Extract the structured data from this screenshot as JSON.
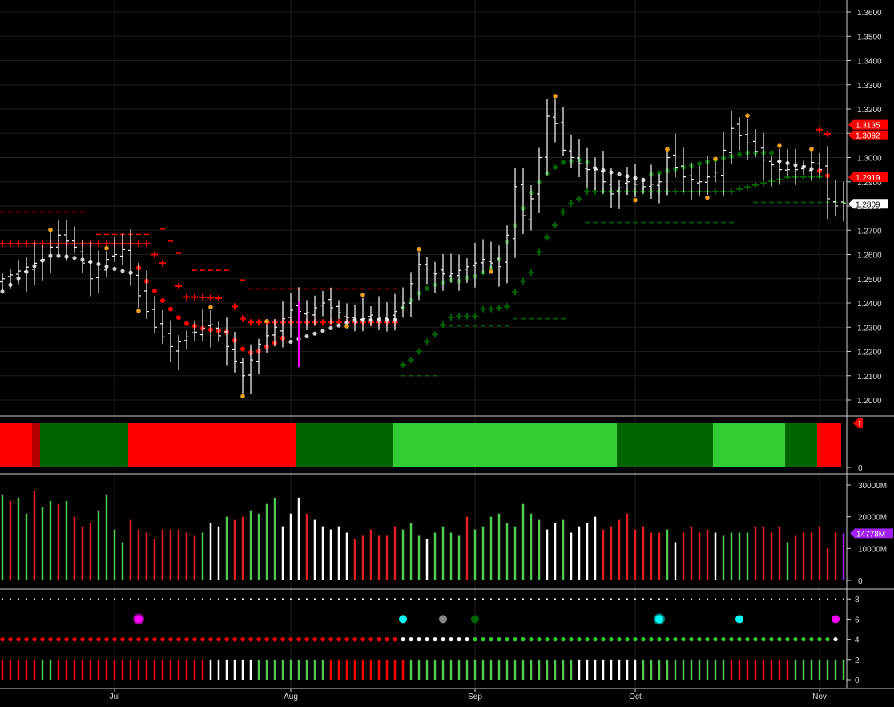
{
  "colors": {
    "background": "#000000",
    "bar": "#ffffff",
    "bull_dark": "#006400",
    "bull_light": "#32cd32",
    "bear": "#ff0000",
    "bear_dark": "#b30000",
    "volume_green": "#4fc94f",
    "volume_red": "#e02020",
    "volume_last": "#a020f0",
    "marker_orange": "#f0a020",
    "marker_cyan": "#00ffff",
    "marker_magenta": "#ff00ff",
    "marker_gray": "#888888"
  },
  "chart_data": [
    {
      "type": "ohlc",
      "panel": "price",
      "ylim": [
        1.195,
        1.3615
      ],
      "y_ticks": [
        "1.3600",
        "1.3500",
        "1.3400",
        "1.3300",
        "1.3200",
        "1.3100",
        "1.3000",
        "1.2900",
        "1.2800",
        "1.2700",
        "1.2600",
        "1.2500",
        "1.2400",
        "1.2300",
        "1.2200",
        "1.2100",
        "1.2000"
      ],
      "x_ticks": [
        "Jul",
        "Aug",
        "Sep",
        "Oct",
        "Nov"
      ],
      "x_tick_index": [
        14,
        36,
        59,
        79,
        102
      ],
      "anchors": {
        "close": [
          [
            0,
            1.25
          ],
          [
            5,
            1.258
          ],
          [
            7,
            1.268
          ],
          [
            9,
            1.263
          ],
          [
            11,
            1.25
          ],
          [
            13,
            1.258
          ],
          [
            15,
            1.262
          ],
          [
            17,
            1.243
          ],
          [
            19,
            1.23
          ],
          [
            21,
            1.222
          ],
          [
            24,
            1.228
          ],
          [
            26,
            1.231
          ],
          [
            28,
            1.222
          ],
          [
            30,
            1.21
          ],
          [
            32,
            1.223
          ],
          [
            34,
            1.23
          ],
          [
            36,
            1.237
          ],
          [
            38,
            1.236
          ],
          [
            40,
            1.24
          ],
          [
            42,
            1.236
          ],
          [
            44,
            1.232
          ],
          [
            46,
            1.235
          ],
          [
            48,
            1.233
          ],
          [
            50,
            1.24
          ],
          [
            52,
            1.256
          ],
          [
            54,
            1.252
          ],
          [
            56,
            1.252
          ],
          [
            58,
            1.255
          ],
          [
            60,
            1.258
          ],
          [
            62,
            1.255
          ],
          [
            63,
            1.268
          ],
          [
            64,
            1.288
          ],
          [
            65,
            1.276
          ],
          [
            66,
            1.283
          ],
          [
            67,
            1.3
          ],
          [
            68,
            1.317
          ],
          [
            69,
            1.314
          ],
          [
            70,
            1.303
          ],
          [
            71,
            1.3
          ],
          [
            73,
            1.295
          ],
          [
            74,
            1.295
          ],
          [
            76,
            1.285
          ],
          [
            78,
            1.29
          ],
          [
            80,
            1.288
          ],
          [
            82,
            1.29
          ],
          [
            83,
            1.3
          ],
          [
            85,
            1.292
          ],
          [
            87,
            1.29
          ],
          [
            89,
            1.294
          ],
          [
            90,
            1.303
          ],
          [
            91,
            1.312
          ],
          [
            93,
            1.306
          ],
          [
            95,
            1.299
          ],
          [
            97,
            1.295
          ],
          [
            99,
            1.295
          ],
          [
            101,
            1.298
          ],
          [
            102,
            1.295
          ],
          [
            103,
            1.283
          ],
          [
            104,
            1.28
          ],
          [
            105,
            1.281
          ]
        ]
      },
      "tags": [
        "1.3135",
        "1.3092",
        "1.2919",
        "1.2809"
      ],
      "tag_values": [
        1.3135,
        1.3092,
        1.2919,
        1.2809
      ]
    },
    {
      "type": "heatmap",
      "panel": "trend_band",
      "segments": [
        {
          "start": 0,
          "end": 4,
          "color": "bear"
        },
        {
          "start": 4,
          "end": 5,
          "color": "bear_dark"
        },
        {
          "start": 5,
          "end": 16,
          "color": "bull_dark"
        },
        {
          "start": 16,
          "end": 37,
          "color": "bear"
        },
        {
          "start": 37,
          "end": 49,
          "color": "bull_dark"
        },
        {
          "start": 49,
          "end": 77,
          "color": "bull_light"
        },
        {
          "start": 77,
          "end": 89,
          "color": "bull_dark"
        },
        {
          "start": 89,
          "end": 98,
          "color": "bull_light"
        },
        {
          "start": 98,
          "end": 102,
          "color": "bull_dark"
        },
        {
          "start": 102,
          "end": 104,
          "color": "bear"
        }
      ],
      "y_ticks": [
        "0"
      ],
      "tag": "1"
    },
    {
      "type": "bar",
      "panel": "volume",
      "ylim": [
        0,
        32000
      ],
      "y_ticks": [
        "30000M",
        "20000M",
        "10000M",
        "0"
      ],
      "last_value_label": "14778M",
      "values": [
        27000,
        25000,
        26000,
        21000,
        28000,
        23000,
        25000,
        24000,
        25000,
        20000,
        17000,
        18000,
        22000,
        27000,
        16000,
        12000,
        19000,
        16000,
        15000,
        13000,
        16000,
        16000,
        16000,
        15000,
        14000,
        15000,
        18000,
        17000,
        20000,
        19000,
        20000,
        22000,
        21000,
        24000,
        26000,
        17000,
        21000,
        26000,
        21000,
        19000,
        17000,
        16000,
        17000,
        15000,
        13000,
        14000,
        16000,
        14000,
        14000,
        17000,
        16000,
        18000,
        14000,
        13000,
        15000,
        17000,
        15000,
        14000,
        20000,
        16000,
        17000,
        20000,
        21000,
        18000,
        17000,
        24000,
        21000,
        19000,
        16000,
        18000,
        19000,
        15000,
        17000,
        18000,
        20000,
        16000,
        17000,
        19000,
        21000,
        16000,
        17000,
        15000,
        15000,
        16000,
        12000,
        15000,
        17000,
        15000,
        16000,
        15000,
        14000,
        15000,
        15000,
        15000,
        17000,
        17000,
        15000,
        17000,
        12000,
        14000,
        15000,
        15000,
        17000,
        10000,
        15000,
        14778
      ],
      "colors": [
        "g",
        "r",
        "g",
        "g",
        "r",
        "g",
        "g",
        "r",
        "g",
        "r",
        "r",
        "r",
        "g",
        "g",
        "g",
        "g",
        "r",
        "r",
        "r",
        "r",
        "r",
        "r",
        "r",
        "r",
        "r",
        "g",
        "w",
        "w",
        "g",
        "r",
        "r",
        "g",
        "g",
        "g",
        "g",
        "w",
        "w",
        "w",
        "r",
        "w",
        "w",
        "w",
        "w",
        "w",
        "r",
        "r",
        "r",
        "r",
        "r",
        "r",
        "g",
        "g",
        "g",
        "w",
        "g",
        "g",
        "g",
        "g",
        "r",
        "g",
        "g",
        "g",
        "g",
        "g",
        "g",
        "g",
        "g",
        "g",
        "w",
        "w",
        "g",
        "w",
        "w",
        "w",
        "w",
        "r",
        "r",
        "r",
        "r",
        "r",
        "r",
        "r",
        "r",
        "g",
        "w",
        "r",
        "r",
        "r",
        "r",
        "w",
        "g",
        "g",
        "g",
        "g",
        "r",
        "r",
        "r",
        "r",
        "g",
        "r",
        "r",
        "r",
        "r",
        "r",
        "r",
        "v"
      ]
    },
    {
      "type": "scatter",
      "panel": "signals",
      "y_ticks": [
        "8",
        "6",
        "4",
        "2",
        "0"
      ],
      "row8": {
        "value": 8,
        "color": "bar"
      },
      "row6_markers": [
        {
          "x": 17,
          "color": "marker_magenta",
          "big": true
        },
        {
          "x": 50,
          "color": "marker_cyan",
          "big": false
        },
        {
          "x": 55,
          "color": "marker_gray",
          "big": false
        },
        {
          "x": 59,
          "color": "bull_dark",
          "big": false
        },
        {
          "x": 82,
          "color": "marker_cyan",
          "big": true
        },
        {
          "x": 92,
          "color": "marker_cyan",
          "big": false
        },
        {
          "x": 104,
          "color": "marker_magenta",
          "big": false
        }
      ],
      "row4_segments": [
        {
          "start": 0,
          "end": 49,
          "color": "bear"
        },
        {
          "start": 50,
          "end": 58,
          "color": "bar"
        },
        {
          "start": 59,
          "end": 103,
          "color": "bull_light"
        },
        {
          "start": 104,
          "end": 104,
          "color": "bar"
        }
      ],
      "row2_colors": "rrrrrggrrrrrrrrrrrrrrrrrrrwwwwwwgggggggggrrrrrrrrrrgggggggggggggggggggggwwwwwwwwgggggggggggrrrrrrrrgggggggwwwwgggggr"
    }
  ]
}
